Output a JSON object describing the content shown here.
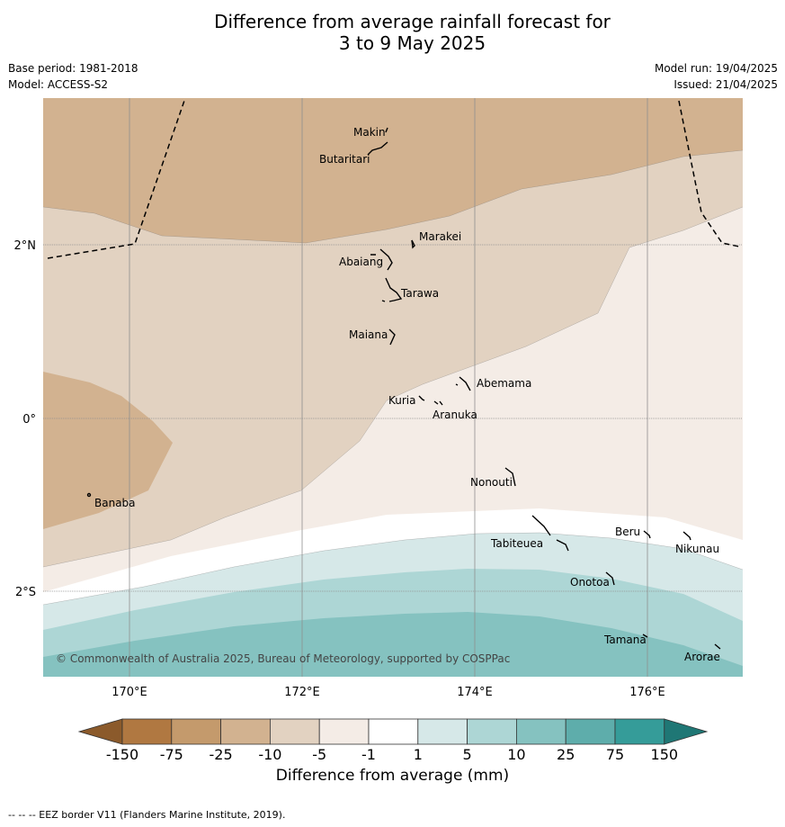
{
  "title_line1": "Difference from average rainfall forecast for",
  "title_line2": "3 to 9 May 2025",
  "meta": {
    "base_period": "Base period: 1981-2018",
    "model": "Model: ACCESS-S2",
    "model_run": "Model run: 19/04/2025",
    "issued": "Issued: 21/04/2025"
  },
  "lat_labels": [
    "2°N",
    "0°",
    "2°S"
  ],
  "lon_labels": [
    "170°E",
    "172°E",
    "174°E",
    "176°E"
  ],
  "places": [
    {
      "name": "Makin"
    },
    {
      "name": "Butaritari"
    },
    {
      "name": "Marakei"
    },
    {
      "name": "Abaiang"
    },
    {
      "name": "Tarawa"
    },
    {
      "name": "Maiana"
    },
    {
      "name": "Abemama"
    },
    {
      "name": "Kuria"
    },
    {
      "name": "Aranuka"
    },
    {
      "name": "Banaba"
    },
    {
      "name": "Nonouti"
    },
    {
      "name": "Beru"
    },
    {
      "name": "Tabiteuea"
    },
    {
      "name": "Nikunau"
    },
    {
      "name": "Onotoa"
    },
    {
      "name": "Tamana"
    },
    {
      "name": "Arorae"
    }
  ],
  "copyright": "© Commonwealth of Australia 2025, Bureau of Meteorology, supported by COSPPac",
  "legend": {
    "title": "Difference from average (mm)",
    "tick_labels": [
      "-150",
      "-75",
      "-25",
      "-10",
      "-5",
      "-1",
      "1",
      "5",
      "10",
      "25",
      "75",
      "150"
    ],
    "colors": [
      "#8b5a2b",
      "#b07841",
      "#c49a6c",
      "#d2b290",
      "#e2d2c1",
      "#f4ece6",
      "#ffffff",
      "#d6e8e8",
      "#add6d5",
      "#85c2c0",
      "#5eadab",
      "#359c99",
      "#1f7775"
    ]
  },
  "footnote": "--  --  -- EEZ border V11 (Flanders Marine Institute, 2019)."
}
